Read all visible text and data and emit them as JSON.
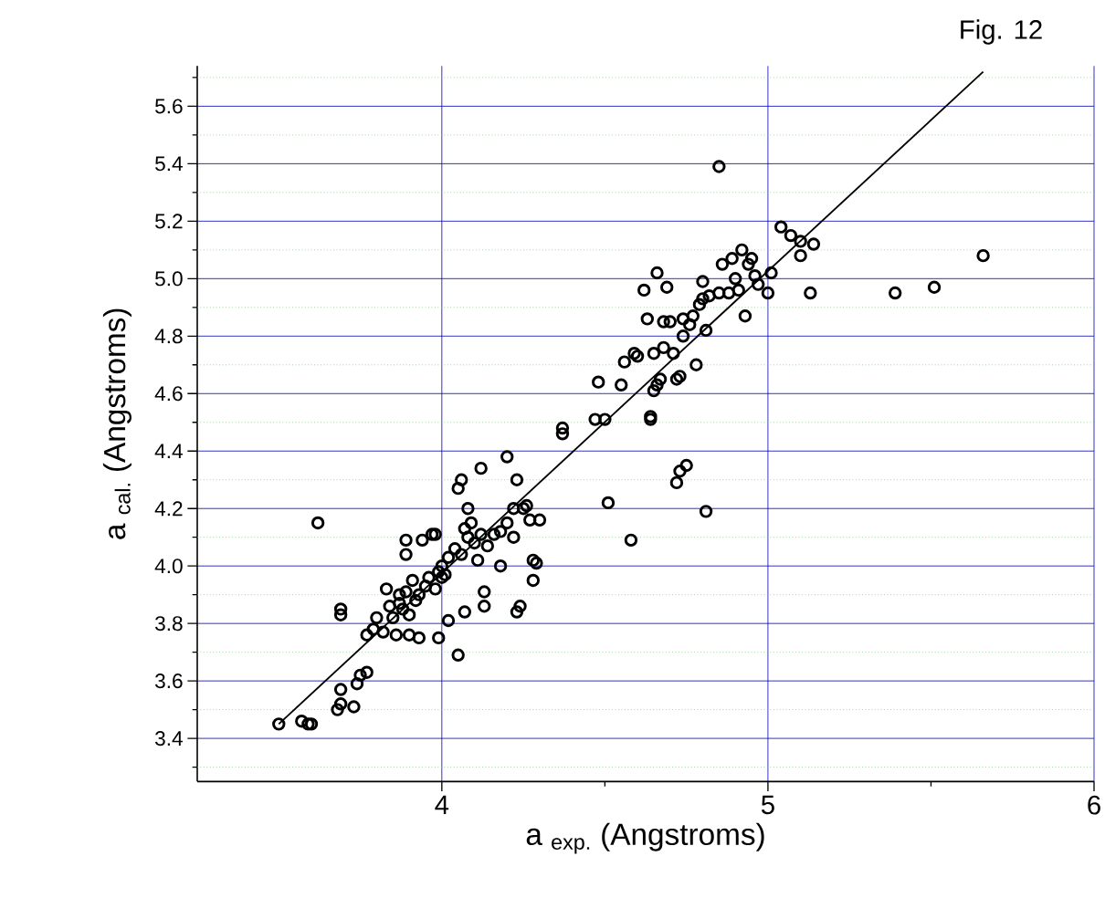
{
  "chart_data": {
    "type": "scatter",
    "title": "Fig. 12",
    "xlabel": "a $_{exp.}$ (Angstroms)",
    "ylabel": "a $_{cal.}$ (Angstroms)",
    "xlim": [
      3.25,
      6
    ],
    "ylim": [
      3.25,
      5.74
    ],
    "xticks": [
      4,
      5,
      6
    ],
    "yticks": [
      {
        "value": 3.3,
        "label": null
      },
      {
        "value": 3.4,
        "label": "3.4"
      },
      {
        "value": 3.5,
        "label": null
      },
      {
        "value": 3.6,
        "label": "3.6"
      },
      {
        "value": 3.7,
        "label": null
      },
      {
        "value": 3.8,
        "label": "3.8"
      },
      {
        "value": 3.9,
        "label": null
      },
      {
        "value": 4.0,
        "label": "4.0"
      },
      {
        "value": 4.1,
        "label": null
      },
      {
        "value": 4.2,
        "label": "4.2"
      },
      {
        "value": 4.3,
        "label": null
      },
      {
        "value": 4.4,
        "label": "4.4"
      },
      {
        "value": 4.5,
        "label": null
      },
      {
        "value": 4.6,
        "label": "4.6"
      },
      {
        "value": 4.7,
        "label": null
      },
      {
        "value": 4.8,
        "label": "4.8"
      },
      {
        "value": 4.9,
        "label": null
      },
      {
        "value": 5.0,
        "label": "5.0"
      },
      {
        "value": 5.1,
        "label": null
      },
      {
        "value": 5.2,
        "label": "5.2"
      },
      {
        "value": 5.3,
        "label": null
      },
      {
        "value": 5.4,
        "label": "5.4"
      },
      {
        "value": 5.5,
        "label": null
      },
      {
        "value": 5.6,
        "label": "5.6"
      },
      {
        "value": 5.7,
        "label": null
      }
    ],
    "grid": true,
    "marker": "circle",
    "series": [
      {
        "color": "#000000",
        "x": [
          3.5,
          3.57,
          3.59,
          3.6,
          3.68,
          3.69,
          3.69,
          3.73,
          3.74,
          3.75,
          3.77,
          3.69,
          3.69,
          3.62,
          3.77,
          3.79,
          3.8,
          3.82,
          3.83,
          3.84,
          3.85,
          3.86,
          3.87,
          3.87,
          3.88,
          3.89,
          3.89,
          3.89,
          3.9,
          3.9,
          3.91,
          3.92,
          3.93,
          3.93,
          3.94,
          3.95,
          3.96,
          3.97,
          3.98,
          3.98,
          3.99,
          3.99,
          4.0,
          4.0,
          4.01,
          4.02,
          4.02,
          4.04,
          4.05,
          4.05,
          4.06,
          4.06,
          4.07,
          4.07,
          4.08,
          4.08,
          4.09,
          4.1,
          4.11,
          4.12,
          4.12,
          4.13,
          4.13,
          4.14,
          4.16,
          4.18,
          4.18,
          4.2,
          4.2,
          4.22,
          4.22,
          4.23,
          4.23,
          4.24,
          4.25,
          4.26,
          4.27,
          4.28,
          4.28,
          4.29,
          4.3,
          4.37,
          4.37,
          4.47,
          4.48,
          4.5,
          4.51,
          4.55,
          4.56,
          4.58,
          4.59,
          4.6,
          4.62,
          4.63,
          4.64,
          4.64,
          4.65,
          4.65,
          4.66,
          4.66,
          4.67,
          4.68,
          4.68,
          4.69,
          4.7,
          4.71,
          4.72,
          4.72,
          4.73,
          4.73,
          4.74,
          4.74,
          4.75,
          4.76,
          4.77,
          4.78,
          4.79,
          4.8,
          4.8,
          4.81,
          4.81,
          4.82,
          4.85,
          4.85,
          4.86,
          4.88,
          4.89,
          4.9,
          4.91,
          4.92,
          4.93,
          4.94,
          4.95,
          4.96,
          4.97,
          5.0,
          5.01,
          5.04,
          5.07,
          5.1,
          5.1,
          5.13,
          5.14,
          5.39,
          5.51,
          5.66
        ],
        "values": [
          3.45,
          3.46,
          3.45,
          3.45,
          3.5,
          3.52,
          3.57,
          3.51,
          3.59,
          3.62,
          3.63,
          3.83,
          3.85,
          4.15,
          3.76,
          3.78,
          3.82,
          3.77,
          3.92,
          3.86,
          3.82,
          3.76,
          3.9,
          3.87,
          3.85,
          3.91,
          4.04,
          4.09,
          3.76,
          3.83,
          3.95,
          3.88,
          3.75,
          3.9,
          4.09,
          3.93,
          3.96,
          4.11,
          4.11,
          3.92,
          3.98,
          3.75,
          4.0,
          3.96,
          3.97,
          4.03,
          3.81,
          4.06,
          3.69,
          4.27,
          4.3,
          4.04,
          4.13,
          3.84,
          4.1,
          4.2,
          4.15,
          4.08,
          4.02,
          4.34,
          4.11,
          3.91,
          3.86,
          4.07,
          4.11,
          4.0,
          4.12,
          4.15,
          4.38,
          4.2,
          4.1,
          3.84,
          4.3,
          3.86,
          4.2,
          4.21,
          4.16,
          4.02,
          3.95,
          4.01,
          4.16,
          4.46,
          4.48,
          4.51,
          4.64,
          4.51,
          4.22,
          4.63,
          4.71,
          4.09,
          4.74,
          4.73,
          4.96,
          4.86,
          4.51,
          4.52,
          4.74,
          4.61,
          5.02,
          4.63,
          4.65,
          4.85,
          4.76,
          4.97,
          4.85,
          4.74,
          4.29,
          4.65,
          4.33,
          4.66,
          4.8,
          4.86,
          4.35,
          4.84,
          4.87,
          4.7,
          4.91,
          4.93,
          4.99,
          4.19,
          4.82,
          4.94,
          4.95,
          5.39,
          5.05,
          4.95,
          5.07,
          5.0,
          4.96,
          5.1,
          4.87,
          5.05,
          5.07,
          5.01,
          4.98,
          4.95,
          5.02,
          5.18,
          5.15,
          5.13,
          5.08,
          4.95,
          5.12,
          4.95,
          4.97,
          5.08
        ]
      },
      {
        "type": "line",
        "color": "#000000",
        "marker": "none",
        "line_style": "solid",
        "x": [
          3.5,
          5.66
        ],
        "values": [
          3.45,
          5.72
        ]
      }
    ]
  }
}
